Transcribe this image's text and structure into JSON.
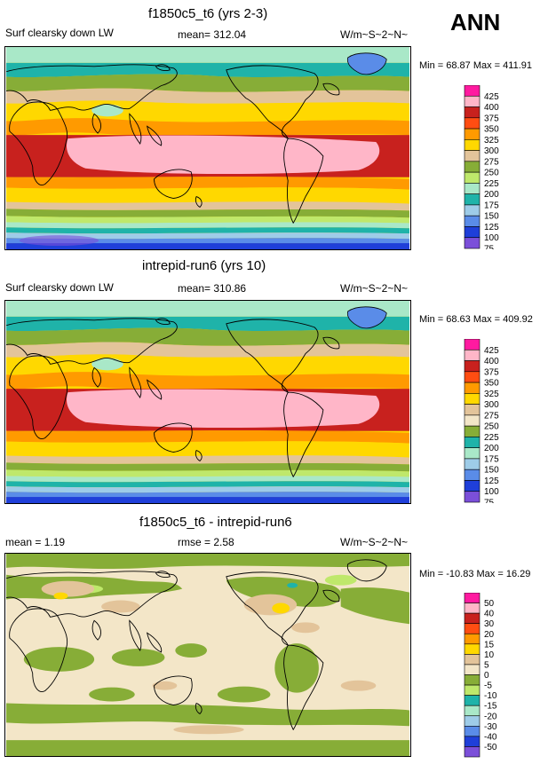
{
  "season": "ANN",
  "panels": [
    {
      "title": "f1850c5_t6 (yrs 2-3)",
      "left_label": "Surf clearsky down LW",
      "center_label": "mean= 312.04",
      "units": "W/m~S~2~N~",
      "min_max": "Min =  68.87 Max = 411.91",
      "legend_labels": [
        "425",
        "400",
        "375",
        "350",
        "325",
        "300",
        "275",
        "250",
        "225",
        "200",
        "175",
        "150",
        "125",
        "100",
        "75"
      ],
      "legend_colors": [
        "#ff1aa0",
        "#ffb6c8",
        "#c8211e",
        "#ff4d12",
        "#ff9a00",
        "#ffd800",
        "#e3c49a",
        "#87ad37",
        "#bfe86b",
        "#a9e8c8",
        "#1fb3a9",
        "#9ecce8",
        "#5a8ce8",
        "#1f3fd9",
        "#7b4fd9"
      ]
    },
    {
      "title": "intrepid-run6 (yrs 10)",
      "left_label": "Surf clearsky down LW",
      "center_label": "mean= 310.86",
      "units": "W/m~S~2~N~",
      "min_max": "Min =  68.63 Max = 409.92",
      "legend_labels": [
        "425",
        "400",
        "375",
        "350",
        "325",
        "300",
        "275",
        "250",
        "225",
        "200",
        "175",
        "150",
        "125",
        "100",
        "75"
      ],
      "legend_colors": [
        "#ff1aa0",
        "#ffb6c8",
        "#c8211e",
        "#ff4d12",
        "#ff9a00",
        "#ffd800",
        "#e3c49a",
        "#f3e6c8",
        "#87ad37",
        "#1fb3a9",
        "#a9e8c8",
        "#9ecce8",
        "#5a8ce8",
        "#1f3fd9",
        "#7b4fd9"
      ]
    },
    {
      "title": "f1850c5_t6 - intrepid-run6",
      "left_label": "mean =   1.19",
      "center_label": "rmse =   2.58",
      "units": "W/m~S~2~N~",
      "min_max": "Min = -10.83 Max =  16.29",
      "legend_labels": [
        "50",
        "40",
        "30",
        "20",
        "15",
        "10",
        "5",
        "0",
        "-5",
        "-10",
        "-15",
        "-20",
        "-30",
        "-40",
        "-50"
      ],
      "legend_colors": [
        "#ff1aa0",
        "#ffb6c8",
        "#c8211e",
        "#ff4d12",
        "#ff9a00",
        "#ffd800",
        "#e3c49a",
        "#f3e6c8",
        "#87ad37",
        "#bfe86b",
        "#1fb3a9",
        "#a9e8c8",
        "#9ecce8",
        "#5a8ce8",
        "#1f3fd9",
        "#7b4fd9"
      ]
    }
  ]
}
